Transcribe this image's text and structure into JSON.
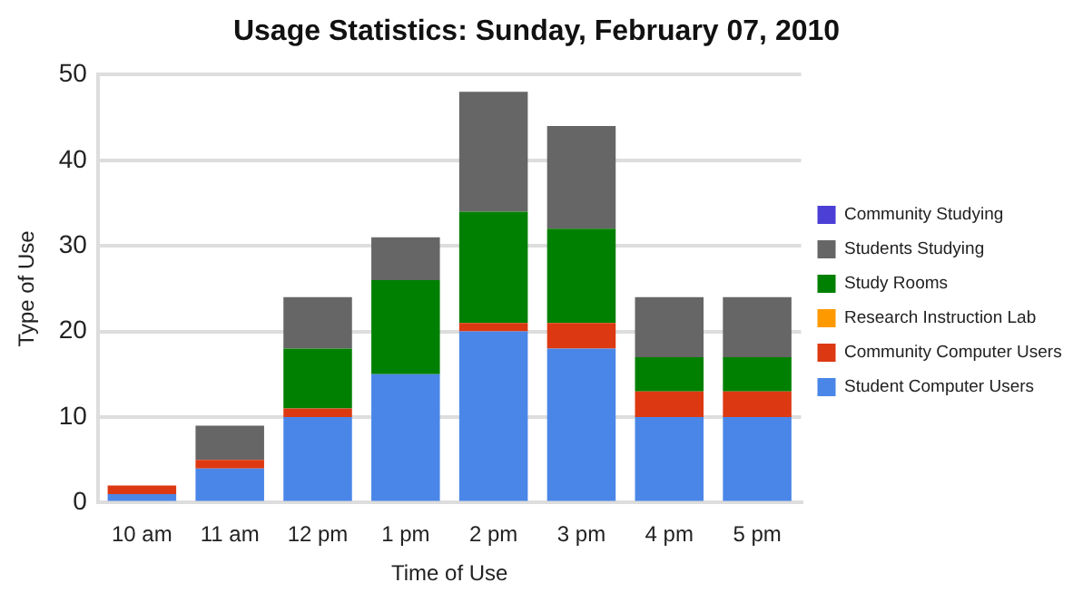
{
  "chart_data": {
    "type": "bar",
    "title": "Usage Statistics: Sunday, February 07, 2010",
    "xlabel": "Time of Use",
    "ylabel": "Type of Use",
    "categories": [
      "10 am",
      "11 am",
      "12 pm",
      "1 pm",
      "2 pm",
      "3 pm",
      "4 pm",
      "5 pm"
    ],
    "stacked": true,
    "ylim": [
      0,
      50
    ],
    "yticks": [
      0,
      10,
      20,
      30,
      40,
      50
    ],
    "grid": "y",
    "legend": "right",
    "series": [
      {
        "name": "Student Computer Users",
        "color": "#4a86e8",
        "values": [
          1,
          4,
          10,
          15,
          20,
          18,
          10,
          10
        ]
      },
      {
        "name": "Community Computer Users",
        "color": "#dc3912",
        "values": [
          1,
          1,
          1,
          0,
          1,
          3,
          3,
          3
        ]
      },
      {
        "name": "Research Instruction Lab",
        "color": "#ff9900",
        "values": [
          0,
          0,
          0,
          0,
          0,
          0,
          0,
          0
        ]
      },
      {
        "name": "Study Rooms",
        "color": "#008000",
        "values": [
          0,
          0,
          7,
          11,
          13,
          11,
          4,
          4
        ]
      },
      {
        "name": "Students Studying",
        "color": "#666666",
        "values": [
          0,
          4,
          6,
          5,
          14,
          12,
          7,
          7
        ]
      },
      {
        "name": "Community Studying",
        "color": "#4b3fd6",
        "values": [
          0,
          0,
          0,
          0,
          0,
          0,
          0,
          0
        ]
      }
    ]
  }
}
